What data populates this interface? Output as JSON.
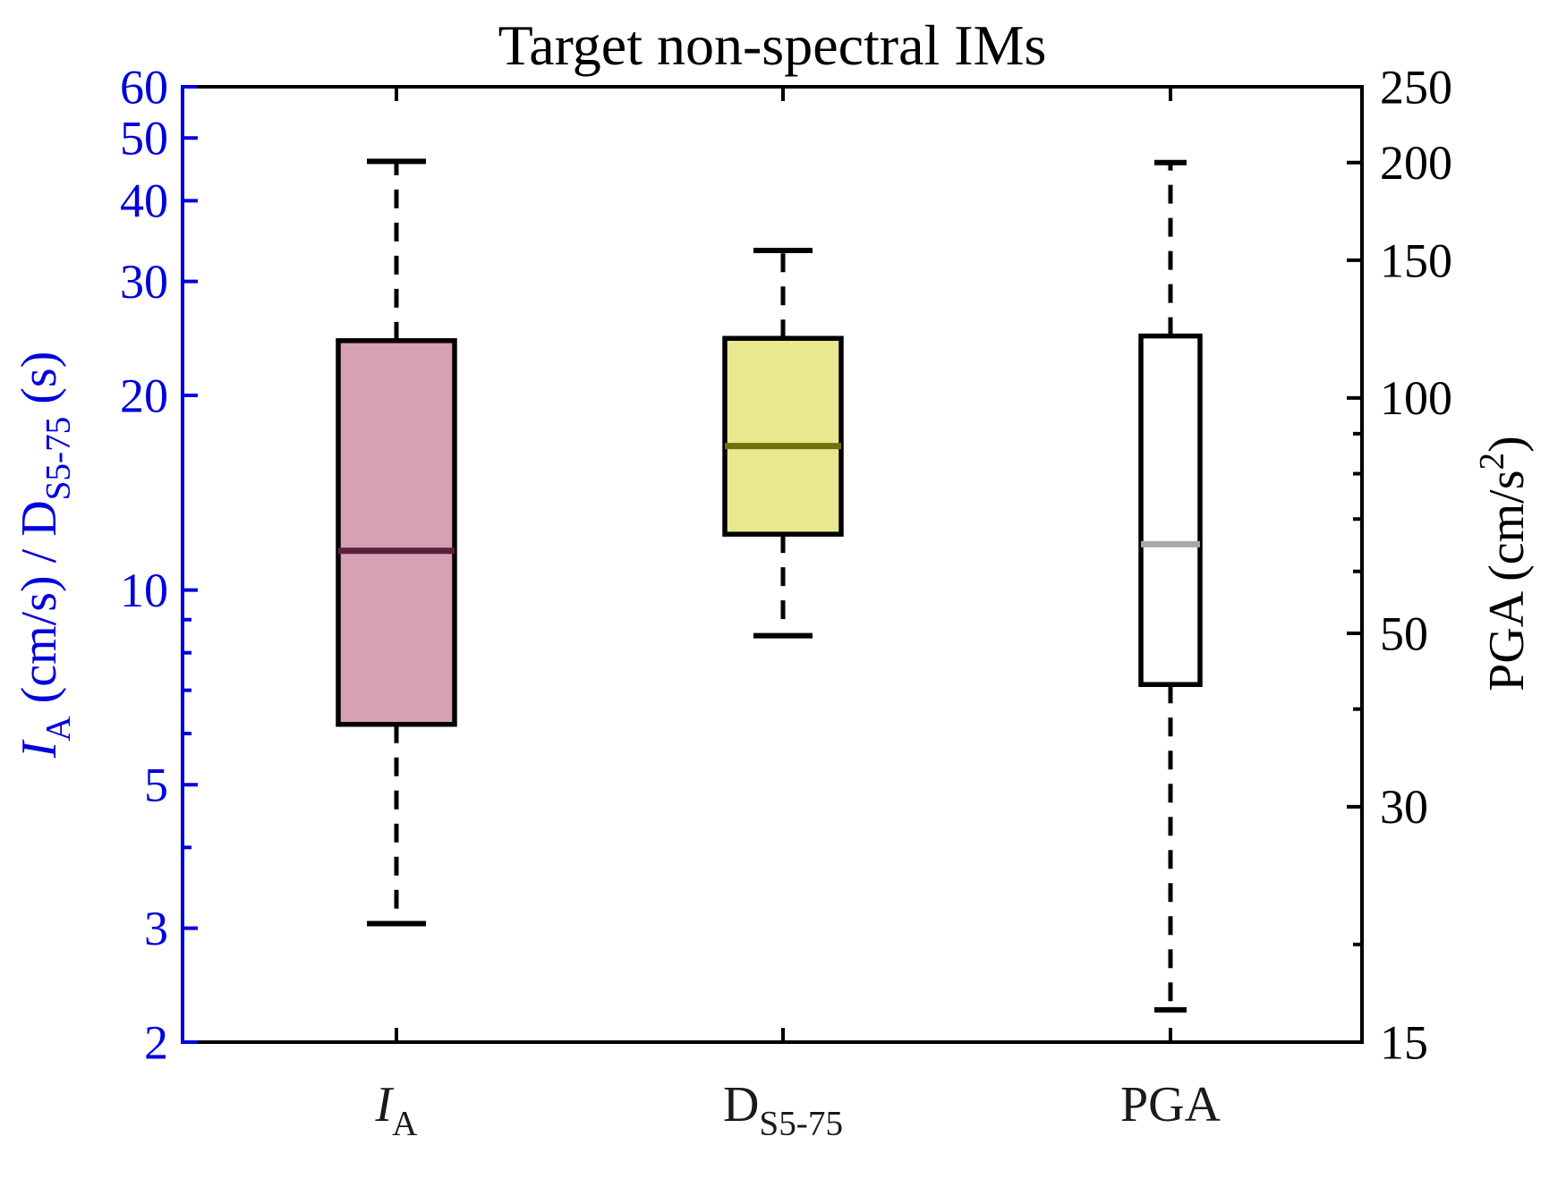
{
  "figure": {
    "title": "Target non-spectral IMs"
  },
  "chart_data": {
    "type": "boxplot",
    "title": "Target non-spectral IMs",
    "background": "#FFFFFF",
    "grid": false,
    "categories": [
      "IA",
      "DS5-75",
      "PGA"
    ],
    "x_tick_labels_rich": [
      [
        {
          "text": "I",
          "italic": true
        },
        {
          "text": "A",
          "sub": true
        }
      ],
      [
        {
          "text": "D"
        },
        {
          "text": "S5-75",
          "sub": true
        }
      ],
      [
        {
          "text": "PGA"
        }
      ]
    ],
    "left_axis": {
      "label": "IA (cm/s) / DS5-75 (s)",
      "label_rich": [
        {
          "text": "I",
          "italic": true
        },
        {
          "text": "A",
          "sub": true
        },
        {
          "text": " (cm/s)  /  D"
        },
        {
          "text": "S5-75",
          "sub": true
        },
        {
          "text": " (s)"
        }
      ],
      "color": "#0000DD",
      "scale": "log",
      "min": 2,
      "max": 60,
      "tick_labels": [
        "60",
        "50",
        "40",
        "30",
        "20",
        "10",
        "5",
        "3",
        "2"
      ],
      "tick_values": [
        60,
        50,
        40,
        30,
        20,
        10,
        5,
        3,
        2
      ],
      "minor_tick_values": [
        9,
        8,
        7,
        6,
        4
      ]
    },
    "right_axis": {
      "label": "PGA (cm/s2)",
      "label_rich": [
        {
          "text": "PGA (cm/s"
        },
        {
          "text": "2",
          "super": true
        },
        {
          "text": ")"
        }
      ],
      "color": "#000000",
      "scale": "log",
      "min": 15,
      "max": 250,
      "tick_labels": [
        "250",
        "200",
        "150",
        "100",
        "50",
        "30",
        "15"
      ],
      "tick_values": [
        250,
        200,
        150,
        100,
        50,
        30,
        15
      ],
      "minor_tick_values": [
        90,
        80,
        70,
        60,
        40,
        20
      ]
    },
    "series": [
      {
        "name": "IA",
        "axis": "left",
        "whisker_low": 3.05,
        "q1": 6.2,
        "median": 11.5,
        "q3": 24.3,
        "whisker_high": 46,
        "fill": "#D7A0B5",
        "edge": "#000000",
        "median_color": "#5A1F3D"
      },
      {
        "name": "DS5-75",
        "axis": "left",
        "whisker_low": 8.5,
        "q1": 12.2,
        "median": 16.7,
        "q3": 24.5,
        "whisker_high": 33.5,
        "fill": "#E9E88E",
        "edge": "#000000",
        "median_color": "#70700F"
      },
      {
        "name": "PGA",
        "axis": "right",
        "whisker_low": 16.5,
        "q1": 43,
        "median": 65,
        "q3": 120,
        "whisker_high": 200,
        "fill": "#FFFFFF",
        "edge": "#000000",
        "median_color": "#A8A8A8"
      }
    ]
  }
}
